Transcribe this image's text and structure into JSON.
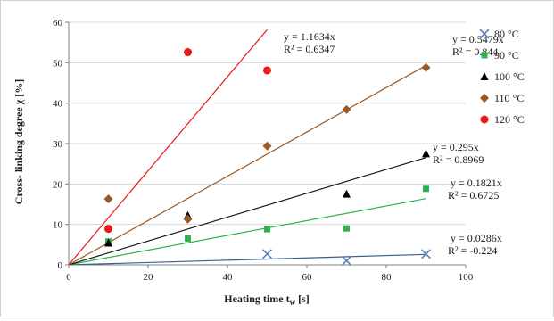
{
  "chart_data": {
    "type": "scatter",
    "xlabel": "Heating time t",
    "xlabel_sub": "w",
    "xlabel_unit": " [s]",
    "ylabel": "Cross- linking degree χ [%]",
    "xlim": [
      0,
      100
    ],
    "ylim": [
      0,
      60
    ],
    "x_ticks": [
      0,
      20,
      40,
      60,
      80,
      100
    ],
    "y_ticks": [
      0,
      10,
      20,
      30,
      40,
      50,
      60
    ],
    "grid": "horizontal",
    "legend_position": "right",
    "series": [
      {
        "name": "80 °C",
        "marker": "x",
        "color": "#5b7fb8",
        "line_color": "#3a5f8f",
        "points": [
          [
            50,
            2.7
          ],
          [
            70,
            1.0
          ],
          [
            90,
            2.7
          ]
        ],
        "trend": {
          "slope": 0.0286,
          "label_eq": "y = 0.0286x",
          "label_r2": "R² = -0.224"
        }
      },
      {
        "name": "90 °C",
        "marker": "square",
        "color": "#2db34a",
        "line_color": "#2db34a",
        "points": [
          [
            10,
            5.8
          ],
          [
            30,
            6.5
          ],
          [
            50,
            8.8
          ],
          [
            70,
            9.0
          ],
          [
            90,
            18.8
          ]
        ],
        "trend": {
          "slope": 0.1821,
          "label_eq": "y = 0.1821x",
          "label_r2": "R² = 0.6725"
        }
      },
      {
        "name": "100 °C",
        "marker": "triangle",
        "color": "#000000",
        "line_color": "#1a1a1a",
        "points": [
          [
            10,
            5.4
          ],
          [
            30,
            12.2
          ],
          [
            70,
            17.5
          ],
          [
            90,
            27.5
          ]
        ],
        "trend": {
          "slope": 0.295,
          "label_eq": "y = 0.295x",
          "label_r2": "R² = 0.8969"
        }
      },
      {
        "name": "110 °C",
        "marker": "diamond",
        "color": "#9b5a24",
        "line_color": "#9b5a24",
        "points": [
          [
            10,
            16.3
          ],
          [
            30,
            11.3
          ],
          [
            50,
            29.4
          ],
          [
            70,
            38.4
          ],
          [
            90,
            48.8
          ]
        ],
        "trend": {
          "slope": 0.5479,
          "label_eq": "y = 0.5479x",
          "label_r2": "R² = 0.844"
        }
      },
      {
        "name": "120 °C",
        "marker": "circle",
        "color": "#e8191b",
        "line_color": "#e8191b",
        "points": [
          [
            10,
            8.9
          ],
          [
            30,
            52.6
          ],
          [
            50,
            48.1
          ]
        ],
        "trend": {
          "slope": 1.1634,
          "label_eq": "y = 1.1634x",
          "label_r2": "R² = 0.6347"
        }
      }
    ]
  }
}
